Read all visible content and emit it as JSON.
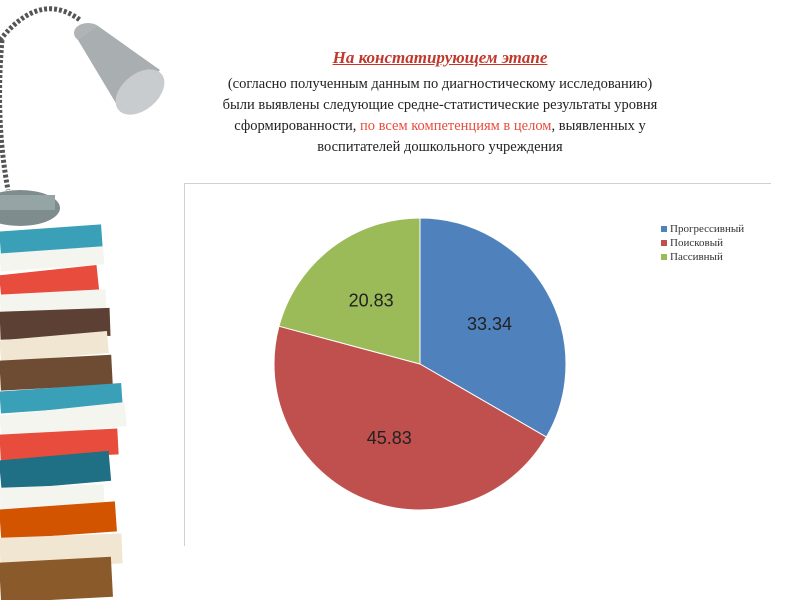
{
  "heading": {
    "title": "На констатирующем этапе",
    "line1": "(согласно полученным данным по диагностическому исследованию)",
    "line2": "были выявлены следующие средне-статистические результаты уровня",
    "line3_pre": "сформированности,",
    "line3_highlight": "по всем компетенциям в целом",
    "line3_post": ", выявленных у",
    "line4": "воспитателей дошкольного учреждения"
  },
  "colors": {
    "blue": "#4f81bd",
    "red": "#c0504d",
    "green": "#9bbb59",
    "accent": "#c0392b"
  },
  "chart_data": {
    "type": "pie",
    "labels": [
      "Прогрессивный",
      "Поисковый",
      "Пассивный"
    ],
    "values": [
      33.34,
      45.83,
      20.83
    ],
    "colors": [
      "#4f81bd",
      "#c0504d",
      "#9bbb59"
    ],
    "legend_position": "right",
    "start_angle_deg": -90,
    "direction": "clockwise"
  }
}
